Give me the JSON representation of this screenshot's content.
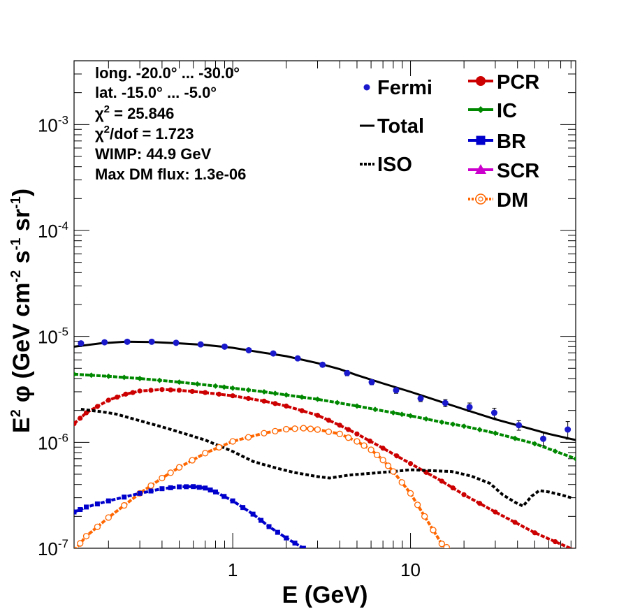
{
  "chart_data": {
    "type": "line",
    "xscale": "log",
    "yscale": "log",
    "xlim": [
      0.128,
      85
    ],
    "ylim": [
      1e-07,
      0.004
    ],
    "xlabel": "E (GeV)",
    "ylabel_parts": {
      "e": "E",
      "e_exp": "2",
      "phi": "φ (GeV cm",
      "cm_exp": "-2",
      "s": " s",
      "s_exp": "-1",
      "sr": " sr",
      "sr_exp": "-1",
      "close": ")"
    },
    "x_tick_labels": [
      {
        "value": 1,
        "label": "1"
      },
      {
        "value": 10,
        "label": "10"
      }
    ],
    "y_tick_labels": [
      {
        "value": 1e-07,
        "base": "10",
        "exp": "-7"
      },
      {
        "value": 1e-06,
        "base": "10",
        "exp": "-6"
      },
      {
        "value": 1e-05,
        "base": "10",
        "exp": "-5"
      },
      {
        "value": 0.0001,
        "base": "10",
        "exp": "-4"
      },
      {
        "value": 0.001,
        "base": "10",
        "exp": "-3"
      }
    ],
    "info_text": {
      "long": "long. -20.0° ... -30.0°",
      "lat": "lat. -15.0° ... -5.0°",
      "chi2_sym": "χ",
      "chi2_exp": "2",
      "chi2_val": " = 25.846",
      "chi2dof_val": "/dof = 1.723",
      "wimp": "WIMP: 44.9 GeV",
      "maxdm": "Max DM flux: 1.3e-06"
    },
    "legend_left": [
      {
        "key": "fermi",
        "label": "Fermi"
      },
      {
        "key": "total",
        "label": "Total"
      },
      {
        "key": "iso",
        "label": "ISO"
      }
    ],
    "legend_right": [
      {
        "key": "pcr",
        "label": "PCR"
      },
      {
        "key": "ic",
        "label": "IC"
      },
      {
        "key": "br",
        "label": "BR"
      },
      {
        "key": "scr",
        "label": "SCR"
      },
      {
        "key": "dm",
        "label": "DM"
      }
    ],
    "colors": {
      "fermi": "#1a1acc",
      "total": "#000000",
      "iso": "#000000",
      "pcr": "#cc0000",
      "ic": "#008800",
      "br": "#0000cc",
      "scr": "#cc00cc",
      "dm": "#ff6600"
    },
    "fermi_points": [
      [
        0.14,
        8.6e-06,
        2.5e-07
      ],
      [
        0.19,
        8.8e-06,
        2.5e-07
      ],
      [
        0.255,
        8.9e-06,
        2.5e-07
      ],
      [
        0.35,
        8.9e-06,
        2.5e-07
      ],
      [
        0.48,
        8.7e-06,
        2.5e-07
      ],
      [
        0.66,
        8.4e-06,
        2.5e-07
      ],
      [
        0.9,
        8e-06,
        2.5e-07
      ],
      [
        1.23,
        7.4e-06,
        2.5e-07
      ],
      [
        1.69,
        6.9e-06,
        2.5e-07
      ],
      [
        2.32,
        6.2e-06,
        2.5e-07
      ],
      [
        3.2,
        5.4e-06,
        2.5e-07
      ],
      [
        4.4,
        4.5e-06,
        2.5e-07
      ],
      [
        6.05,
        3.7e-06,
        2e-07
      ],
      [
        8.3,
        3.1e-06,
        2e-07
      ],
      [
        11.4,
        2.6e-06,
        1.8e-07
      ],
      [
        15.7,
        2.35e-06,
        1.8e-07
      ],
      [
        21.5,
        2.15e-06,
        2e-07
      ],
      [
        29.6,
        1.9e-06,
        2e-07
      ],
      [
        40.7,
        1.45e-06,
        1.5e-07
      ],
      [
        55.8,
        1.08e-06,
        1.5e-07
      ],
      [
        76.7,
        1.32e-06,
        2.5e-07
      ]
    ],
    "series": [
      {
        "name": "Total",
        "key": "total",
        "style": "solid",
        "x": [
          0.128,
          0.18,
          0.25,
          0.35,
          0.5,
          0.7,
          1.0,
          1.5,
          2.0,
          3.0,
          4.0,
          5.0,
          7.0,
          10,
          15,
          20,
          30,
          40,
          60,
          85
        ],
        "y": [
          8e-06,
          8.6e-06,
          8.9e-06,
          8.85e-06,
          8.6e-06,
          8.3e-06,
          7.8e-06,
          7e-06,
          6.5e-06,
          5.6e-06,
          4.9e-06,
          4.3e-06,
          3.6e-06,
          3e-06,
          2.4e-06,
          2.05e-06,
          1.65e-06,
          1.45e-06,
          1.2e-06,
          1.05e-06
        ]
      },
      {
        "name": "IC",
        "key": "ic",
        "style": "dashed",
        "marker": "diamond",
        "x": [
          0.128,
          0.2,
          0.3,
          0.5,
          0.8,
          1.0,
          1.5,
          2.0,
          3.0,
          5.0,
          8.0,
          10,
          15,
          20,
          30,
          50,
          85
        ],
        "y": [
          4.4e-06,
          4.2e-06,
          4e-06,
          3.7e-06,
          3.4e-06,
          3.25e-06,
          3e-06,
          2.8e-06,
          2.55e-06,
          2.2e-06,
          1.9e-06,
          1.78e-06,
          1.55e-06,
          1.42e-06,
          1.22e-06,
          9.7e-07,
          7e-07
        ]
      },
      {
        "name": "PCR",
        "key": "pcr",
        "style": "dashed",
        "marker": "circle",
        "x": [
          0.128,
          0.15,
          0.2,
          0.25,
          0.3,
          0.4,
          0.5,
          0.7,
          1.0,
          1.5,
          2.0,
          3.0,
          4.0,
          5.0,
          7.0,
          10,
          15,
          20,
          30,
          50,
          85
        ],
        "y": [
          1.5e-06,
          1.9e-06,
          2.5e-06,
          2.85e-06,
          3.05e-06,
          3.15e-06,
          3.1e-06,
          2.95e-06,
          2.75e-06,
          2.45e-06,
          2.2e-06,
          1.8e-06,
          1.45e-06,
          1.2e-06,
          8.8e-07,
          6.3e-07,
          4.3e-07,
          3.2e-07,
          2.2e-07,
          1.4e-07,
          9.5e-08
        ]
      },
      {
        "name": "ISO",
        "key": "iso",
        "style": "dotted",
        "x": [
          0.14,
          0.18,
          0.22,
          0.3,
          0.4,
          0.5,
          0.7,
          1.0,
          1.3,
          1.7,
          2.2,
          3.0,
          3.5,
          4.5,
          6.0,
          8.0,
          10.0,
          13.0,
          17.0,
          22.0,
          28.0,
          33.0,
          39.0,
          43.0,
          48.0,
          53.0,
          60.0,
          70.0,
          80.0
        ],
        "y": [
          2.05e-06,
          1.95e-06,
          1.85e-06,
          1.6e-06,
          1.4e-06,
          1.25e-06,
          1.05e-06,
          8.2e-07,
          6.6e-07,
          5.8e-07,
          5.2e-07,
          4.75e-07,
          4.6e-07,
          4.9e-07,
          5.1e-07,
          5.3e-07,
          5.5e-07,
          5.4e-07,
          5.3e-07,
          4.8e-07,
          4.1e-07,
          3.2e-07,
          2.7e-07,
          2.5e-07,
          3.1e-07,
          3.5e-07,
          3.4e-07,
          3.2e-07,
          3e-07
        ]
      },
      {
        "name": "DM",
        "key": "dm",
        "style": "dashed",
        "marker": "opencircle",
        "x": [
          0.128,
          0.15,
          0.2,
          0.3,
          0.4,
          0.5,
          0.7,
          1.0,
          1.5,
          2.0,
          2.5,
          3.0,
          4.0,
          5.0,
          6.0,
          7.0,
          8.0,
          10.0,
          12.0,
          15.0,
          17.0
        ],
        "y": [
          9.5e-08,
          1.3e-07,
          1.95e-07,
          3.3e-07,
          4.6e-07,
          5.8e-07,
          7.9e-07,
          1.02e-06,
          1.22e-06,
          1.33e-06,
          1.36e-06,
          1.32e-06,
          1.2e-06,
          1.02e-06,
          8.5e-07,
          6.8e-07,
          5.3e-07,
          3.3e-07,
          2e-07,
          1.1e-07,
          9.5e-08
        ]
      },
      {
        "name": "BR",
        "key": "br",
        "style": "dashed",
        "marker": "square",
        "x": [
          0.128,
          0.15,
          0.2,
          0.3,
          0.4,
          0.5,
          0.6,
          0.7,
          0.8,
          1.0,
          1.3,
          1.6,
          2.0,
          2.5,
          3.0
        ],
        "y": [
          2.2e-07,
          2.45e-07,
          2.8e-07,
          3.3e-07,
          3.65e-07,
          3.8e-07,
          3.82e-07,
          3.7e-07,
          3.4e-07,
          2.8e-07,
          2.1e-07,
          1.6e-07,
          1.25e-07,
          1e-07,
          8e-08
        ]
      }
    ]
  }
}
